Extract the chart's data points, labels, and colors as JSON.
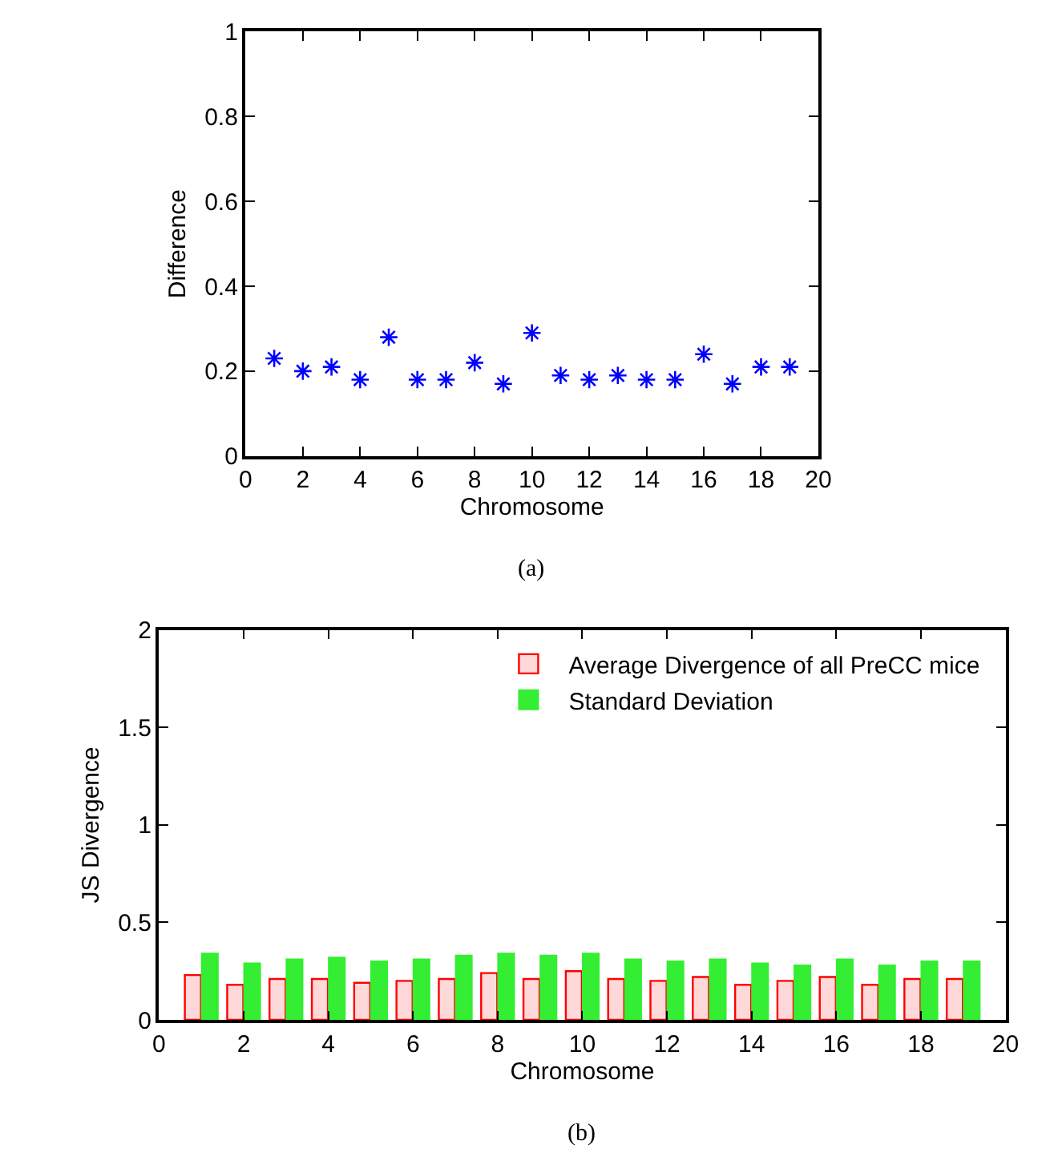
{
  "chart_data": [
    {
      "type": "scatter",
      "xlabel": "Chromosome",
      "ylabel": "Difference",
      "annotations": [
        "(a)"
      ],
      "marker": "cross",
      "legend": false,
      "x": [
        1,
        2,
        3,
        4,
        5,
        6,
        7,
        8,
        9,
        10,
        11,
        12,
        13,
        14,
        15,
        16,
        17,
        18,
        19
      ],
      "series": [
        {
          "color": "#0000ff",
          "values": [
            0.23,
            0.2,
            0.21,
            0.18,
            0.28,
            0.18,
            0.18,
            0.22,
            0.17,
            0.29,
            0.19,
            0.18,
            0.19,
            0.18,
            0.18,
            0.24,
            0.17,
            0.21,
            0.21
          ]
        }
      ],
      "xlim": [
        0,
        20
      ],
      "xticks": [
        0,
        2,
        4,
        6,
        8,
        10,
        12,
        14,
        16,
        18,
        20
      ],
      "ylim": [
        0,
        1
      ],
      "yticks": [
        0,
        0.2,
        0.4,
        0.6,
        0.8,
        1
      ]
    },
    {
      "type": "bar",
      "xlabel": "Chromosome",
      "ylabel": "JS Divergence",
      "annotations": [
        "(b)"
      ],
      "legend": "top right",
      "x": [
        1,
        2,
        3,
        4,
        5,
        6,
        7,
        8,
        9,
        10,
        11,
        12,
        13,
        14,
        15,
        16,
        17,
        18,
        19
      ],
      "series": [
        {
          "name": "Average Divergence of all PreCC mice",
          "color": "#ff0000",
          "values": [
            0.23,
            0.18,
            0.21,
            0.21,
            0.19,
            0.2,
            0.21,
            0.24,
            0.21,
            0.25,
            0.21,
            0.2,
            0.22,
            0.18,
            0.2,
            0.22,
            0.18,
            0.21,
            0.21
          ]
        },
        {
          "name": "Standard Deviation",
          "color": "#33ee33",
          "values": [
            0.34,
            0.29,
            0.31,
            0.32,
            0.3,
            0.31,
            0.33,
            0.34,
            0.33,
            0.34,
            0.31,
            0.3,
            0.31,
            0.29,
            0.28,
            0.31,
            0.28,
            0.3,
            0.3
          ]
        }
      ],
      "xlim": [
        0,
        20
      ],
      "xticks": [
        0,
        2,
        4,
        6,
        8,
        10,
        12,
        14,
        16,
        18,
        20
      ],
      "ylim": [
        0,
        2
      ],
      "yticks": [
        0,
        0.5,
        1,
        1.5,
        2
      ]
    }
  ]
}
